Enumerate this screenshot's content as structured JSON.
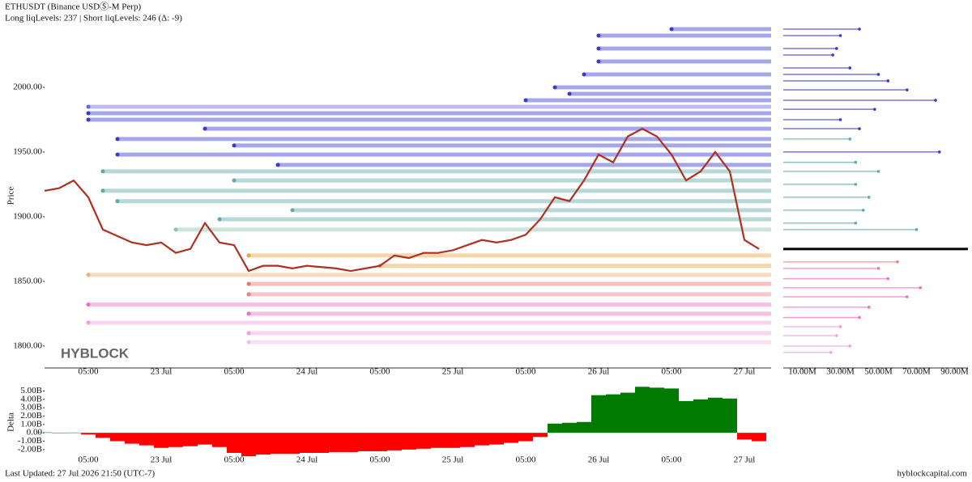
{
  "chart_data": [
    {
      "type": "line",
      "title": "ETHUSDT (Binance USDⓈ-M Perp)",
      "subtitle": "Long liqLevels: 237 | Short liqLevels: 246 (Δ: -9)",
      "y_label": "Price",
      "categories": [
        null,
        null,
        null,
        "05:00",
        null,
        null,
        null,
        null,
        "23 Jul",
        null,
        null,
        null,
        null,
        "05:00",
        null,
        null,
        null,
        null,
        "24 Jul",
        null,
        null,
        null,
        null,
        "05:00",
        null,
        null,
        null,
        null,
        "25 Jul",
        null,
        null,
        null,
        null,
        "05:00",
        null,
        null,
        null,
        null,
        "26 Jul",
        null,
        null,
        null,
        null,
        "05:00",
        null,
        null,
        null,
        null,
        "27 Jul",
        null
      ],
      "values": [
        1920,
        1922,
        1928,
        1915,
        1890,
        1885,
        1880,
        1878,
        1880,
        1872,
        1875,
        1895,
        1880,
        1878,
        1858,
        1862,
        1862,
        1860,
        1862,
        1861,
        1860,
        1858,
        1860,
        1862,
        1870,
        1868,
        1872,
        1872,
        1874,
        1878,
        1882,
        1880,
        1882,
        1886,
        1898,
        1915,
        1912,
        1928,
        1948,
        1942,
        1962,
        1968,
        1962,
        1948,
        1928,
        1935,
        1950,
        1935,
        1882,
        1875
      ],
      "color": "#b03020",
      "ylim": [
        1783,
        2050
      ],
      "yticks": [
        {
          "value": 1800,
          "label": "1800.00"
        },
        {
          "value": 1850,
          "label": "1850.00"
        },
        {
          "value": 1900,
          "label": "1900.00"
        },
        {
          "value": 1950,
          "label": "1950.00"
        },
        {
          "value": 2000,
          "label": "2000.00"
        }
      ],
      "levels": {
        "prices": [
          2045,
          2040,
          2030,
          2020,
          2010,
          2000,
          1995,
          1990,
          1985,
          1980,
          1975,
          1968,
          1960,
          1955,
          1948,
          1940,
          1935,
          1928,
          1920,
          1912,
          1905,
          1898,
          1890,
          1870,
          1862,
          1855,
          1848,
          1840,
          1832,
          1825,
          1818,
          1810,
          1803
        ],
        "start": [
          43,
          38,
          38,
          38,
          37,
          35,
          36,
          33,
          3,
          3,
          3,
          11,
          5,
          13,
          5,
          16,
          4,
          13,
          4,
          5,
          17,
          12,
          9,
          14,
          23,
          3,
          14,
          14,
          3,
          14,
          3,
          14,
          14
        ],
        "colors": [
          "#3a3ad0",
          "#3a3ad0",
          "#3a3ad0",
          "#3a3ad0",
          "#3a3ad0",
          "#3a3ad0",
          "#3a3ad0",
          "#3a3ad0",
          "#6a6ae0",
          "#3a3ad0",
          "#3a3ad0",
          "#3a3ad0",
          "#3a3ad0",
          "#3a3ad0",
          "#3a3ad0",
          "#3a3ad0",
          "#5fa8a8",
          "#5fa8a8",
          "#5fa8a8",
          "#5fa8a8",
          "#5fa8a8",
          "#5fa8a8",
          "#8fc0b0",
          "#f0a040",
          "#f0a040",
          "#f0b070",
          "#f07070",
          "#f08080",
          "#f070c0",
          "#f070c0",
          "#f0a0e0",
          "#f0a0e0",
          "#f0c0ec"
        ]
      }
    },
    {
      "type": "hbar",
      "y": [
        2045,
        2040,
        2030,
        2025,
        2015,
        2010,
        2005,
        1998,
        1990,
        1983,
        1975,
        1968,
        1960,
        1950,
        1942,
        1935,
        1925,
        1915,
        1905,
        1895,
        1890,
        1865,
        1860,
        1852,
        1845,
        1838,
        1830,
        1822,
        1815,
        1808,
        1800,
        1795
      ],
      "values": [
        40000000,
        30000000,
        28000000,
        26000000,
        35000000,
        50000000,
        55000000,
        65000000,
        80000000,
        48000000,
        30000000,
        40000000,
        35000000,
        82000000,
        38000000,
        50000000,
        38000000,
        45000000,
        42000000,
        38000000,
        70000000,
        60000000,
        50000000,
        55000000,
        72000000,
        65000000,
        45000000,
        40000000,
        30000000,
        28000000,
        35000000,
        25000000
      ],
      "colors": [
        "#3a3ad0",
        "#3a3ad0",
        "#3a3ad0",
        "#3a3ad0",
        "#3a3ad0",
        "#3a3ad0",
        "#3a3ad0",
        "#3a3ad0",
        "#3a3ad0",
        "#3a3ad0",
        "#3a3ad0",
        "#3a3ad0",
        "#5fa8a8",
        "#3a3ad0",
        "#5fa8a8",
        "#5fa8a8",
        "#5fa8a8",
        "#5fa8a8",
        "#5fa8a8",
        "#5fa8a8",
        "#5fa8a8",
        "#f08080",
        "#f070c0",
        "#f070c0",
        "#f070c0",
        "#f070c0",
        "#f070c0",
        "#f070c0",
        "#f0a0e0",
        "#f0a0e0",
        "#f0a0e0",
        "#f0a0e0"
      ],
      "ylim": [
        1783,
        2050
      ],
      "xlim": [
        0,
        97000000
      ],
      "xticks": [
        {
          "value": 10000000,
          "label": "10.00M"
        },
        {
          "value": 30000000,
          "label": "30.00M"
        },
        {
          "value": 50000000,
          "label": "50.00M"
        },
        {
          "value": 70000000,
          "label": "70.00M"
        },
        {
          "value": 90000000,
          "label": "90.00M"
        }
      ]
    },
    {
      "type": "delta",
      "y_label": "Delta",
      "categories": [
        null,
        null,
        null,
        "05:00",
        null,
        null,
        null,
        null,
        "23 Jul",
        null,
        null,
        null,
        null,
        "05:00",
        null,
        null,
        null,
        null,
        "24 Jul",
        null,
        null,
        null,
        null,
        "05:00",
        null,
        null,
        null,
        null,
        "25 Jul",
        null,
        null,
        null,
        null,
        "05:00",
        null,
        null,
        null,
        null,
        "26 Jul",
        null,
        null,
        null,
        null,
        "05:00",
        null,
        null,
        null,
        null,
        "27 Jul",
        null
      ],
      "values": [
        50000000,
        0,
        30000000,
        -200000000,
        -600000000,
        -1000000000,
        -1300000000,
        -1500000000,
        -1800000000,
        -1700000000,
        -1600000000,
        -1400000000,
        -1700000000,
        -2400000000,
        -2800000000,
        -2600000000,
        -2500000000,
        -2500000000,
        -2400000000,
        -2400000000,
        -2300000000,
        -2300000000,
        -2200000000,
        -2200000000,
        -2100000000,
        -2000000000,
        -1900000000,
        -1800000000,
        -1800000000,
        -1700000000,
        -1500000000,
        -1400000000,
        -1200000000,
        -1000000000,
        -500000000,
        1100000000,
        1200000000,
        1300000000,
        4500000000,
        4600000000,
        4800000000,
        5500000000,
        5400000000,
        5300000000,
        3800000000,
        4000000000,
        4200000000,
        4100000000,
        -800000000,
        -1000000000
      ],
      "colors": {
        "positive": "#007a00",
        "negative": "#ff0000"
      },
      "ylim": [
        -2980000000,
        5530000000
      ],
      "yticks": [
        {
          "value": 5000000000,
          "label": "5.00B"
        },
        {
          "value": 4000000000,
          "label": "4.00B"
        },
        {
          "value": 3000000000,
          "label": "3.00B"
        },
        {
          "value": 2000000000,
          "label": "2.00B"
        },
        {
          "value": 1000000000,
          "label": "1.00B"
        },
        {
          "value": 0,
          "label": "0.00"
        },
        {
          "value": -1000000000,
          "label": "-1.00B"
        },
        {
          "value": -2000000000,
          "label": "-2.00B"
        }
      ]
    }
  ],
  "watermark": "HYBLOCK",
  "footer": {
    "updated": "Last Updated: 27 Jul 2026 21:50 (UTC-7)",
    "site": "hyblockcapital.com"
  }
}
